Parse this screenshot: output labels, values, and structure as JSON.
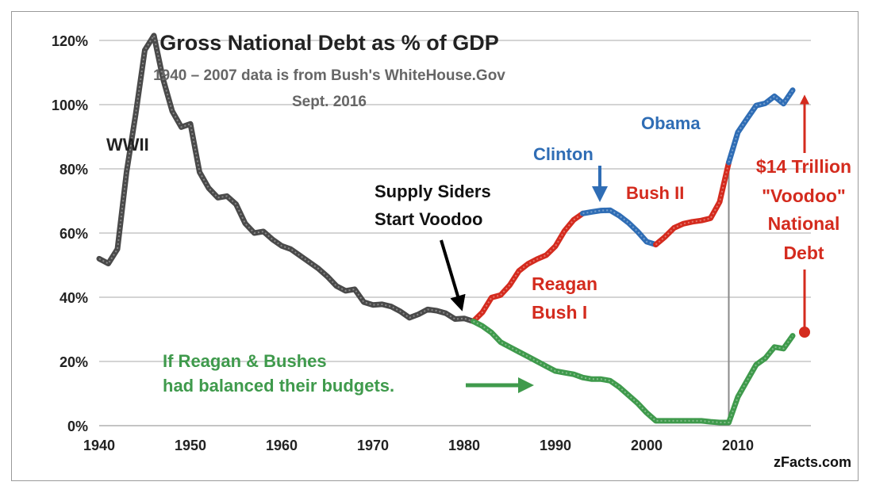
{
  "chart_data": {
    "type": "line",
    "title": "Gross National Debt  as % of GDP",
    "subtitle_line1": "1940 – 2007 data is from Bush's WhiteHouse.Gov",
    "subtitle_line2": "Sept. 2016",
    "xlim": [
      1940,
      2018
    ],
    "ylim": [
      0,
      120
    ],
    "x_ticks": [
      1940,
      1950,
      1960,
      1970,
      1980,
      1990,
      2000,
      2010
    ],
    "y_ticks": [
      {
        "value": 0,
        "label": "0%"
      },
      {
        "value": 20,
        "label": "20%"
      },
      {
        "value": 40,
        "label": "40%"
      },
      {
        "value": 60,
        "label": "60%"
      },
      {
        "value": 80,
        "label": "80%"
      },
      {
        "value": 100,
        "label": "100%"
      },
      {
        "value": 120,
        "label": "120%"
      }
    ],
    "grid": true,
    "series": [
      {
        "key": "pre_reagan",
        "color": "#4a4a4a",
        "points": [
          [
            1940,
            52
          ],
          [
            1941,
            50.5
          ],
          [
            1942,
            55
          ],
          [
            1943,
            79
          ],
          [
            1944,
            97
          ],
          [
            1945,
            117
          ],
          [
            1946,
            121.5
          ],
          [
            1947,
            108
          ],
          [
            1948,
            98
          ],
          [
            1949,
            93
          ],
          [
            1950,
            94
          ],
          [
            1951,
            79
          ],
          [
            1952,
            74
          ],
          [
            1953,
            71
          ],
          [
            1954,
            71.5
          ],
          [
            1955,
            69
          ],
          [
            1956,
            63
          ],
          [
            1957,
            60
          ],
          [
            1958,
            60.5
          ],
          [
            1959,
            58
          ],
          [
            1960,
            56
          ],
          [
            1961,
            55
          ],
          [
            1962,
            53
          ],
          [
            1963,
            51
          ],
          [
            1964,
            49
          ],
          [
            1965,
            46.5
          ],
          [
            1966,
            43.5
          ],
          [
            1967,
            42
          ],
          [
            1968,
            42.5
          ],
          [
            1969,
            38.5
          ],
          [
            1970,
            37.6
          ],
          [
            1971,
            37.8
          ],
          [
            1972,
            37.1
          ],
          [
            1973,
            35.6
          ],
          [
            1974,
            33.6
          ],
          [
            1975,
            34.7
          ],
          [
            1976,
            36.2
          ],
          [
            1977,
            35.8
          ],
          [
            1978,
            35
          ],
          [
            1979,
            33.2
          ],
          [
            1980,
            33.4
          ],
          [
            1981,
            32.5
          ]
        ]
      },
      {
        "key": "reagan_bush_i",
        "color": "#d42b1e",
        "points": [
          [
            1981,
            32.5
          ],
          [
            1982,
            35.3
          ],
          [
            1983,
            39.9
          ],
          [
            1984,
            40.7
          ],
          [
            1985,
            43.8
          ],
          [
            1986,
            48.2
          ],
          [
            1987,
            50.4
          ],
          [
            1988,
            51.9
          ],
          [
            1989,
            53.1
          ],
          [
            1990,
            55.9
          ],
          [
            1991,
            60.7
          ],
          [
            1992,
            64.1
          ],
          [
            1993,
            66.1
          ]
        ]
      },
      {
        "key": "clinton",
        "color": "#2f6db5",
        "points": [
          [
            1993,
            66.1
          ],
          [
            1994,
            66.6
          ],
          [
            1995,
            67.0
          ],
          [
            1996,
            67.1
          ],
          [
            1997,
            65.4
          ],
          [
            1998,
            63.2
          ],
          [
            1999,
            60.5
          ],
          [
            2000,
            57.3
          ],
          [
            2001,
            56.4
          ]
        ]
      },
      {
        "key": "bush_ii",
        "color": "#d42b1e",
        "points": [
          [
            2001,
            56.4
          ],
          [
            2002,
            58.8
          ],
          [
            2003,
            61.6
          ],
          [
            2004,
            62.9
          ],
          [
            2005,
            63.5
          ],
          [
            2006,
            63.9
          ],
          [
            2007,
            64.6
          ],
          [
            2008,
            69.7
          ],
          [
            2009,
            82
          ]
        ]
      },
      {
        "key": "obama",
        "color": "#2f6db5",
        "points": [
          [
            2009,
            82
          ],
          [
            2010,
            91.4
          ],
          [
            2011,
            95.6
          ],
          [
            2012,
            99.7
          ],
          [
            2013,
            100.4
          ],
          [
            2014,
            102.6
          ],
          [
            2015,
            100.3
          ],
          [
            2016,
            104.5
          ]
        ]
      },
      {
        "key": "balanced_budgets",
        "color": "#3f9a4c",
        "points": [
          [
            1981,
            32.5
          ],
          [
            1982,
            31
          ],
          [
            1983,
            29
          ],
          [
            1984,
            26
          ],
          [
            1985,
            24.5
          ],
          [
            1986,
            23
          ],
          [
            1987,
            21.5
          ],
          [
            1988,
            20
          ],
          [
            1989,
            18.5
          ],
          [
            1990,
            17
          ],
          [
            1991,
            16.5
          ],
          [
            1992,
            16
          ],
          [
            1993,
            15
          ],
          [
            1994,
            14.5
          ],
          [
            1995,
            14.5
          ],
          [
            1996,
            14
          ],
          [
            1997,
            12
          ],
          [
            1998,
            9.5
          ],
          [
            1999,
            7
          ],
          [
            2000,
            4
          ],
          [
            2001,
            1.5
          ],
          [
            2002,
            1.5
          ],
          [
            2003,
            1.5
          ],
          [
            2004,
            1.5
          ],
          [
            2005,
            1.5
          ],
          [
            2006,
            1.5
          ],
          [
            2007,
            1.2
          ],
          [
            2008,
            1
          ],
          [
            2009,
            1
          ],
          [
            2010,
            9
          ],
          [
            2011,
            14
          ],
          [
            2012,
            19
          ],
          [
            2013,
            21
          ],
          [
            2014,
            24.5
          ],
          [
            2015,
            24
          ],
          [
            2016,
            28
          ]
        ]
      }
    ],
    "vertical_line_x": 2009,
    "annotations": {
      "wwii": "WWII",
      "supply_1": "Supply Siders",
      "supply_2": "Start Voodoo",
      "clinton": "Clinton",
      "obama": "Obama",
      "bush_ii": "Bush II",
      "reagan_1": "Reagan",
      "reagan_2": "Bush I",
      "balanced_1": "If Reagan & Bushes",
      "balanced_2": "had balanced their budgets.",
      "debt_1": "$14 Trillion",
      "debt_2": "\"Voodoo\"",
      "debt_3": "National",
      "debt_4": "Debt",
      "source": "zFacts.com"
    },
    "colors": {
      "gray": "#4a4a4a",
      "red": "#d42b1e",
      "blue": "#2f6db5",
      "green": "#3f9a4c",
      "black": "#000000"
    }
  }
}
